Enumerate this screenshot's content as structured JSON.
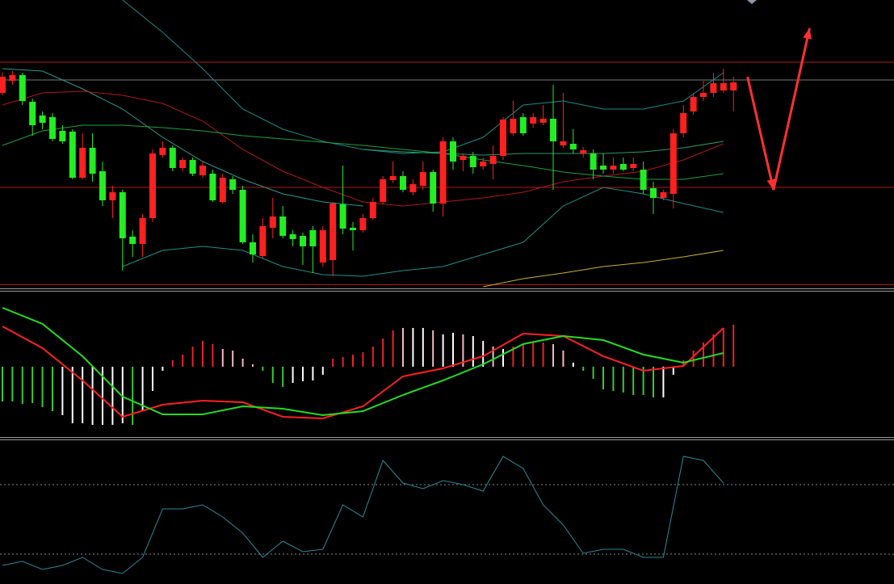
{
  "chart_data": [
    {
      "type": "candlestick",
      "xlim": [
        -0.24,
        89.03
      ],
      "ylim": [
        0,
        355
      ],
      "up_color": "#ff2020",
      "down_color": "#22ee22",
      "open": [
        240,
        255,
        262,
        229,
        212,
        210,
        193,
        192,
        135,
        172,
        143,
        107,
        117,
        62,
        53,
        85,
        163,
        172,
        147,
        157,
        138,
        140,
        105,
        133,
        120,
        55,
        38,
        73,
        87,
        65,
        63,
        70,
        30,
        33,
        102,
        73,
        70,
        85,
        105,
        132,
        137,
        117,
        125,
        142,
        103,
        180,
        157,
        162,
        149,
        152,
        162,
        190,
        210,
        202,
        203,
        208,
        175,
        177,
        165,
        165,
        150,
        145,
        152,
        147,
        145,
        122,
        110,
        115,
        190,
        217,
        235,
        240,
        243,
        243
      ],
      "high": [
        265,
        267,
        265,
        233,
        217,
        215,
        200,
        195,
        190,
        190,
        155,
        125,
        120,
        70,
        90,
        170,
        180,
        175,
        160,
        160,
        155,
        145,
        140,
        137,
        125,
        65,
        85,
        110,
        100,
        70,
        67,
        75,
        75,
        105,
        150,
        80,
        90,
        110,
        137,
        155,
        143,
        133,
        155,
        145,
        185,
        185,
        165,
        167,
        160,
        175,
        210,
        230,
        215,
        215,
        225,
        250,
        240,
        195,
        173,
        170,
        165,
        160,
        160,
        160,
        155,
        130,
        120,
        195,
        225,
        240,
        255,
        265,
        270,
        260
      ],
      "low": [
        237,
        250,
        225,
        187,
        195,
        180,
        177,
        133,
        133,
        130,
        100,
        85,
        20,
        37,
        37,
        80,
        160,
        143,
        143,
        137,
        135,
        105,
        103,
        115,
        53,
        30,
        35,
        60,
        60,
        50,
        27,
        17,
        25,
        13,
        65,
        45,
        67,
        83,
        102,
        129,
        117,
        113,
        120,
        93,
        87,
        145,
        143,
        140,
        145,
        133,
        157,
        187,
        187,
        197,
        200,
        120,
        172,
        165,
        160,
        133,
        140,
        140,
        143,
        143,
        115,
        90,
        107,
        97,
        185,
        213,
        230,
        235,
        240,
        217
      ],
      "close": [
        260,
        262,
        230,
        200,
        203,
        183,
        180,
        135,
        172,
        140,
        107,
        117,
        60,
        53,
        85,
        165,
        172,
        147,
        157,
        140,
        150,
        107,
        135,
        120,
        55,
        40,
        75,
        87,
        63,
        59,
        50,
        50,
        70,
        103,
        72,
        70,
        85,
        105,
        133,
        137,
        120,
        127,
        142,
        103,
        180,
        155,
        162,
        148,
        155,
        162,
        207,
        208,
        190,
        210,
        208,
        180,
        180,
        170,
        169,
        145,
        145,
        150,
        145,
        152,
        120,
        110,
        117,
        190,
        215,
        235,
        240,
        252,
        252,
        253
      ],
      "lines": [
        {
          "color": "#1a8a8a",
          "x": [
            0,
            4,
            8,
            12,
            16,
            20,
            24,
            28,
            32,
            36,
            40,
            44,
            48,
            52,
            56,
            60,
            64,
            68,
            72
          ],
          "values": [
            null,
            null,
            null,
            355,
            315,
            270,
            220,
            195,
            180,
            170,
            165,
            167,
            185,
            225,
            230,
            220,
            220,
            230,
            265
          ]
        },
        {
          "color": "#2a9a90",
          "x": [
            0,
            4,
            8,
            12,
            16,
            20,
            24,
            28,
            32,
            36,
            40,
            44,
            48,
            52,
            56,
            60,
            64,
            68,
            72
          ],
          "values": [
            270,
            267,
            245,
            220,
            185,
            155,
            133,
            115,
            105,
            100,
            null,
            null,
            null,
            null,
            null,
            null,
            null,
            null,
            null
          ]
        },
        {
          "color": "#1f8f86",
          "x": [
            0,
            4,
            8,
            12,
            16,
            20,
            24,
            28,
            32,
            36,
            40,
            44,
            48,
            52,
            56,
            60,
            64,
            68,
            72
          ],
          "values": [
            null,
            null,
            null,
            25,
            45,
            50,
            45,
            25,
            15,
            13,
            20,
            25,
            40,
            55,
            100,
            123,
            115,
            103,
            92
          ]
        },
        {
          "color": "#b01818",
          "x": [
            0,
            4,
            8,
            12,
            16,
            20,
            24,
            28,
            32,
            36,
            40,
            44,
            48,
            52,
            56,
            60,
            64,
            68,
            72
          ],
          "values": [
            225,
            240,
            242,
            237,
            227,
            205,
            170,
            143,
            123,
            105,
            100,
            105,
            110,
            117,
            130,
            137,
            143,
            157,
            177
          ]
        },
        {
          "color": "#1fa03a",
          "x": [
            0,
            4,
            8,
            12,
            16,
            20,
            24,
            28,
            32,
            36,
            40,
            44,
            48,
            52,
            56,
            60,
            64,
            68,
            72
          ],
          "values": [
            175,
            193,
            200,
            200,
            197,
            193,
            187,
            183,
            179,
            175,
            170,
            165,
            157,
            150,
            142,
            137,
            133,
            133,
            140
          ]
        },
        {
          "color": "#2a9a6a",
          "x": [
            0,
            4,
            8,
            12,
            16,
            20,
            24,
            28,
            32,
            36,
            40,
            44,
            48,
            52,
            56,
            60,
            64,
            68,
            72
          ],
          "values": [
            null,
            null,
            null,
            null,
            null,
            null,
            null,
            null,
            null,
            170,
            167,
            165,
            163,
            165,
            165,
            165,
            167,
            172,
            180
          ]
        },
        {
          "color": "#c8b030",
          "x": [
            0,
            4,
            8,
            12,
            16,
            20,
            24,
            28,
            32,
            36,
            40,
            44,
            48,
            52,
            56,
            60,
            64,
            68,
            72
          ],
          "values": [
            null,
            null,
            null,
            null,
            null,
            null,
            null,
            null,
            null,
            null,
            null,
            null,
            0,
            10,
            17,
            25,
            30,
            37,
            45
          ]
        }
      ],
      "levels": [
        {
          "value": 278,
          "color": "#b01818"
        },
        {
          "value": 256,
          "color": "#777777"
        },
        {
          "value": 123,
          "color": "#b01818"
        }
      ],
      "arrow": {
        "color": "#ff3030",
        "x": [
          74.4,
          77,
          80.6
        ],
        "values": [
          260,
          120,
          320
        ]
      }
    },
    {
      "type": "macd",
      "xlim": [
        -0.24,
        89.03
      ],
      "ylim": [
        -87,
        93
      ],
      "values": [
        -43,
        -43,
        -46,
        -45,
        -50,
        -55,
        -60,
        -70,
        -70,
        -72,
        -72,
        -72,
        -70,
        -72,
        -55,
        -30,
        -5,
        8,
        15,
        25,
        32,
        28,
        22,
        20,
        10,
        3,
        -5,
        -20,
        -25,
        -20,
        -18,
        -17,
        -10,
        10,
        12,
        15,
        18,
        25,
        35,
        45,
        48,
        48,
        48,
        45,
        40,
        42,
        40,
        38,
        32,
        25,
        22,
        25,
        28,
        30,
        30,
        28,
        20,
        5,
        -5,
        -15,
        -28,
        -30,
        -32,
        -35,
        -35,
        -38,
        -38,
        -10,
        8,
        20,
        30,
        40,
        48,
        52
      ],
      "bar_colors": [
        "#33cc33",
        "#33cc33",
        "#33cc33",
        "#33cc33",
        "#33cc33",
        "#33cc33",
        "#ffffff",
        "#ffffff",
        "#ffffff",
        "#ffffff",
        "#ffffff",
        "#ffffff",
        "#ffffff",
        "#33cc33",
        "#ffffff",
        "#ffffff",
        "#ffffff",
        "#ee2222",
        "#ee2222",
        "#ee2222",
        "#ee2222",
        "#ee2222",
        "#f4b8c4",
        "#f4b8c4",
        "#f4b8c4",
        "#f4b8c4",
        "#33cc33",
        "#33cc33",
        "#33cc33",
        "#ffffff",
        "#ffffff",
        "#ffffff",
        "#ffffff",
        "#ee2222",
        "#ee2222",
        "#ee2222",
        "#ee2222",
        "#ee2222",
        "#ee2222",
        "#ee2222",
        "#f4b8c4",
        "#ffffff",
        "#ffffff",
        "#f4b8c4",
        "#ffffff",
        "#ffffff",
        "#f4b8c4",
        "#ffffff",
        "#ffffff",
        "#f4b8c4",
        "#ffffff",
        "#ee2222",
        "#ee2222",
        "#ee2222",
        "#ee2222",
        "#f4b8c4",
        "#f4b8c4",
        "#ffffff",
        "#33cc33",
        "#33cc33",
        "#33cc33",
        "#33cc33",
        "#33cc33",
        "#33cc33",
        "#33cc33",
        "#33cc33",
        "#ffffff",
        "#ffffff",
        "#ee2222",
        "#ee2222",
        "#ee2222",
        "#ee2222",
        "#ee2222",
        "#ee2222"
      ],
      "lines": [
        {
          "color": "#ff2020",
          "x": [
            0,
            4,
            8,
            12,
            16,
            20,
            24,
            28,
            32,
            36,
            40,
            44,
            48,
            52,
            56,
            60,
            64,
            68,
            72
          ],
          "values": [
            50,
            23,
            -17,
            -62,
            -47,
            -42,
            -44,
            -62,
            -64,
            -49,
            -12,
            -2,
            13,
            41,
            38,
            13,
            -5,
            1,
            48
          ]
        },
        {
          "color": "#22dd22",
          "x": [
            0,
            4,
            8,
            12,
            16,
            20,
            24,
            28,
            32,
            36,
            40,
            44,
            48,
            52,
            56,
            60,
            64,
            68,
            72
          ],
          "values": [
            73,
            53,
            13,
            -37,
            -59,
            -59,
            -49,
            -52,
            -60,
            -55,
            -35,
            -17,
            3,
            28,
            38,
            33,
            15,
            5,
            17
          ]
        }
      ]
    },
    {
      "type": "line",
      "xlim": [
        -0.24,
        89.03
      ],
      "ylim": [
        0,
        177
      ],
      "color": "#2a8a9a",
      "x": [
        0,
        2,
        4,
        6,
        8,
        10,
        12,
        14,
        16,
        18,
        20,
        22,
        24,
        26,
        28,
        30,
        32,
        34,
        36,
        38,
        40,
        42,
        44,
        46,
        48,
        50,
        52,
        54,
        56,
        58,
        60,
        62,
        64,
        66,
        68,
        70,
        72
      ],
      "values": [
        22,
        27,
        17,
        22,
        32,
        17,
        12,
        32,
        92,
        92,
        97,
        82,
        62,
        32,
        52,
        39,
        42,
        97,
        82,
        152,
        124,
        117,
        127,
        122,
        114,
        157,
        142,
        97,
        72,
        37,
        42,
        42,
        32,
        32,
        157,
        152,
        124
      ],
      "levels": [
        {
          "value": 122,
          "color": "#888888",
          "dashed": true
        },
        {
          "value": 36,
          "color": "#888888",
          "dashed": true
        }
      ]
    }
  ]
}
